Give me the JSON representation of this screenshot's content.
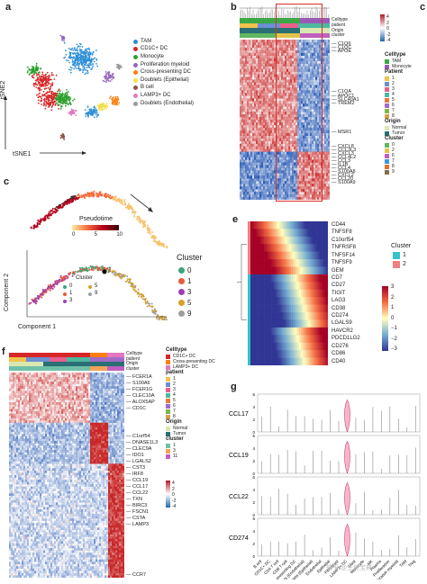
{
  "panels": {
    "a": {
      "label": "a",
      "x_axis": "tSNE1",
      "y_axis": "tSNE2"
    },
    "b": {
      "label": "b"
    },
    "c_top": {
      "label": "c"
    },
    "c": {
      "label": "c",
      "component1": "Component 1",
      "component2": "Component 2",
      "pseudotime_title": "Pseudotime",
      "pt_ticks": [
        "0",
        "5",
        "10"
      ]
    },
    "e": {
      "label": "e"
    },
    "f": {
      "label": "f"
    },
    "g": {
      "label": "g"
    }
  },
  "celltype_legend": [
    {
      "name": "TAM",
      "color": "#2e8fd6"
    },
    {
      "name": "CD1C+ DC",
      "color": "#d62728"
    },
    {
      "name": "Monocyte",
      "color": "#2ca02c"
    },
    {
      "name": "Proliferation myeloid",
      "color": "#9467bd"
    },
    {
      "name": "Cross-presenting DC",
      "color": "#ff7f0e"
    },
    {
      "name": "Doublets (Epithelial)",
      "color": "#f2e04b"
    },
    {
      "name": "B cell",
      "color": "#8c564b"
    },
    {
      "name": "LAMP3+ DC",
      "color": "#e377c2"
    },
    {
      "name": "Doublets (Endothelial)",
      "color": "#999999"
    }
  ],
  "b_tracks": [
    "Celltype",
    "patient",
    "Origin",
    "cluster"
  ],
  "b_scale": [
    "4",
    "2",
    "0",
    "-2",
    "-4"
  ],
  "b_genes": [
    "C1Q6",
    "C1QC",
    "APOE",
    "C1QA",
    "APOC1",
    "SLC40A1",
    "TREM2",
    "MSR1",
    "CXCL8",
    "CCL3L3",
    "CXCL3",
    "CCL4L2",
    "CCL3",
    "IL1B",
    "CCL4",
    "S100A8",
    "CXCL2",
    "CCL20",
    "S100A9"
  ],
  "b_legend": {
    "celltype_title": "Celltype",
    "celltype": [
      "TAM",
      "Monocyte"
    ],
    "patient_title": "Patient",
    "patient": [
      "1",
      "2",
      "3",
      "4",
      "5",
      "6",
      "7",
      "8"
    ],
    "origin_title": "Origin",
    "origin": [
      "Normal",
      "Tumor"
    ],
    "cluster_title": "Cluster",
    "cluster": [
      "0",
      "2",
      "6",
      "7",
      "8",
      "9"
    ]
  },
  "c_cluster_title": "Cluster",
  "c_cluster_legend": [
    "0",
    "1",
    "3",
    "5",
    "9"
  ],
  "c_inner_title": "Cluster",
  "c_inner_legend": [
    "0",
    "5",
    "1",
    "9",
    "3"
  ],
  "e_genes": [
    "CD44",
    "TNFSF8",
    "C10orf54",
    "TNFRSF8",
    "TNFSF14",
    "TNFSF9",
    "GEM",
    "CD7",
    "CD27",
    "TIGIT",
    "LAG3",
    "CD38",
    "CD274",
    "LGALS9",
    "HAVCR2",
    "PDCD1LG2",
    "CD276",
    "CD86",
    "CD40"
  ],
  "e_cluster_title": "Cluster",
  "e_clusters": [
    "1",
    "2"
  ],
  "e_scale": [
    "3",
    "2",
    "1",
    "0",
    "−1",
    "−2",
    "−3"
  ],
  "f_tracks": [
    "Celltype",
    "patient",
    "Origin",
    "cluster"
  ],
  "f_legend": {
    "celltype_title": "Celltype",
    "celltype": [
      "CD1C+ DC",
      "Cross-presenting DC",
      "LAMP3+ DC"
    ],
    "patient_title": "patient",
    "patient": [
      "1",
      "2",
      "3",
      "4",
      "5",
      "6",
      "7",
      "8"
    ],
    "origin_title": "Origin",
    "origin": [
      "Normal",
      "Tumor"
    ],
    "cluster_title": "cluster",
    "cluster": [
      "1",
      "3",
      "11"
    ]
  },
  "f_genes": [
    "FCER1A",
    "S100A6",
    "FCER1G",
    "CLEC10A",
    "ALOX5AP",
    "CD1C",
    "C1orf54",
    "DNASE1L3",
    "CLEC9A",
    "IDO1",
    "LGALS2",
    "CST3",
    "IRF8",
    "CCL19",
    "CCL17",
    "CCL22",
    "TXN",
    "BIRC3",
    "FSCN1",
    "CSTA",
    "LAMP3",
    "CCR7"
  ],
  "f_scale": [
    "4",
    "2",
    "0",
    "-2",
    "-4"
  ],
  "g_genes": [
    "CCL17",
    "CCL19",
    "CCL22",
    "CD274"
  ],
  "g_ticks": [
    "6",
    "4",
    "2",
    "0"
  ],
  "g_celltypes": [
    "B cell",
    "CD1C+ DC",
    "CD4 T cell",
    "CD8 T cell",
    "Cross-presenting DC",
    "Doublets (Endothelial)",
    "Doublets (Epithelial)",
    "Endothelial",
    "Epithelial",
    "Fibroblast",
    "LAMP3+ DC",
    "Mast",
    "Monocyte",
    "NK",
    "Plasma",
    "Proliferation",
    "Proliferation myeloid",
    "TAM",
    "Treg"
  ],
  "watermark": "知乎 @生信宝典"
}
